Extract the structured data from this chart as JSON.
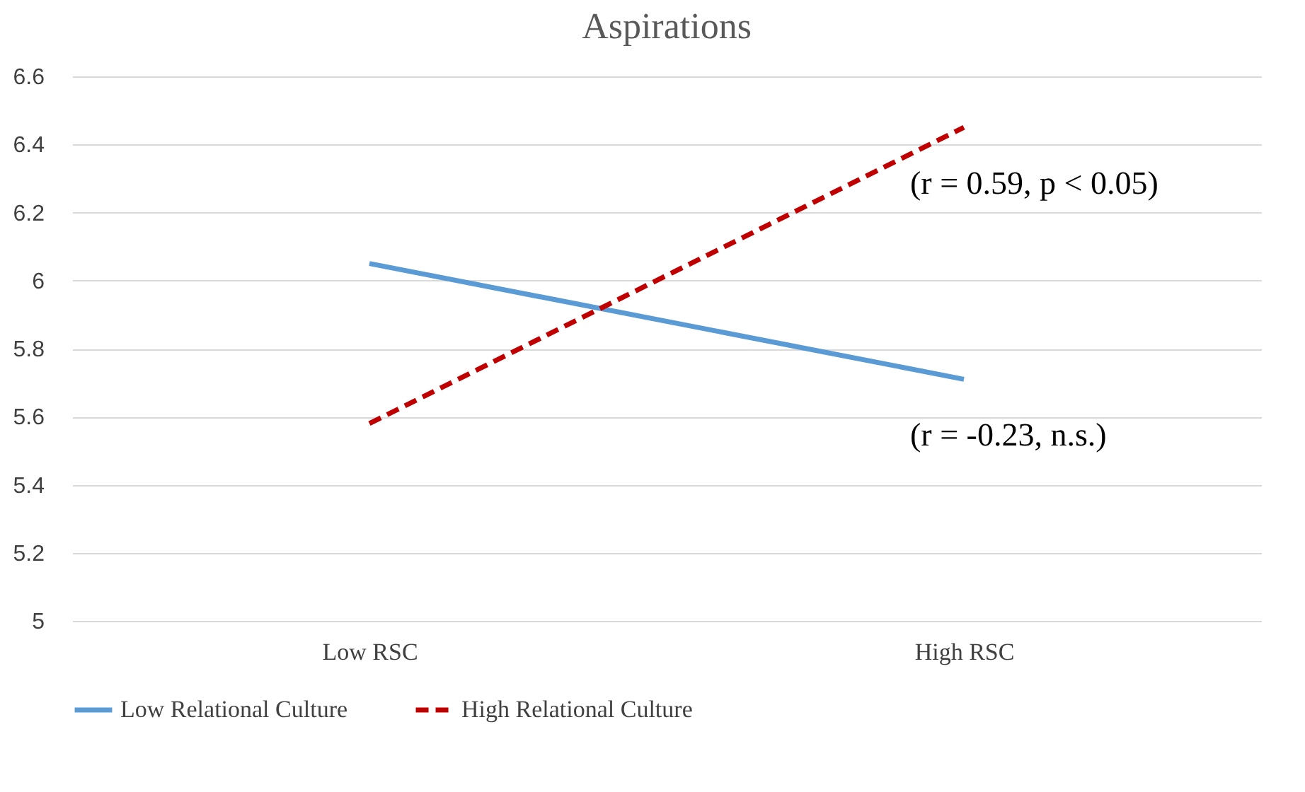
{
  "chart_data": {
    "type": "line",
    "title": "Aspirations",
    "categories": [
      "Low RSC",
      "High RSC"
    ],
    "series": [
      {
        "name": "Low Relational Culture",
        "color": "#5b9bd5",
        "values": [
          6.05,
          5.71
        ],
        "line_style": "solid"
      },
      {
        "name": "High Relational Culture",
        "color": "#c00000",
        "values": [
          5.58,
          6.45
        ],
        "line_style": "dashed"
      }
    ],
    "ylim": [
      5,
      6.6
    ],
    "yticks": [
      5,
      5.2,
      5.4,
      5.6,
      5.8,
      6,
      6.2,
      6.4,
      6.6
    ],
    "grid": "y",
    "legend": "bottom",
    "annotations": [
      {
        "text": "(r = 0.59, p < 0.05)",
        "x": "High RSC",
        "y": 6.45
      },
      {
        "text": "(r = -0.23, n.s.)",
        "x": "High RSC",
        "y": 5.71
      }
    ]
  }
}
